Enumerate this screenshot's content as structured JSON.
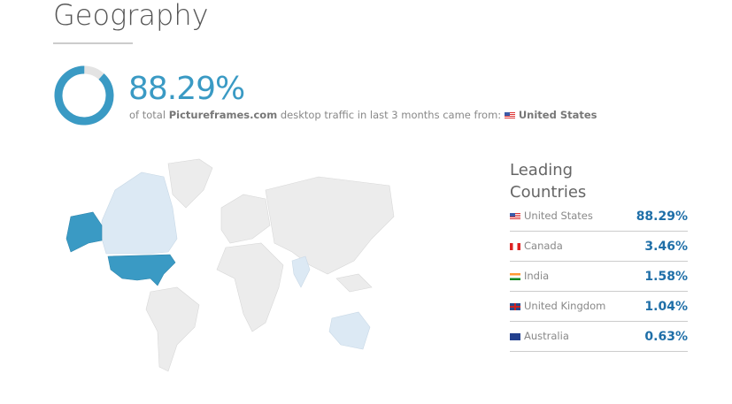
{
  "title": "Geography",
  "summary": {
    "percent": "88.29%",
    "share": 0.8829,
    "prefix": "of total",
    "site": "Pictureframes.com",
    "middle": "desktop traffic in last 3 months came from:",
    "country": "United States",
    "flag": "us-flag-icon"
  },
  "colors": {
    "accent": "#3a9ac4",
    "value": "#1f6fa8",
    "highlight_secondary": "#dce9f4",
    "land": "#ececec"
  },
  "leading": {
    "title_line1": "Leading",
    "title_line2": "Countries",
    "items": [
      {
        "name": "United States",
        "value": "88.29%",
        "flag": "us-flag-icon"
      },
      {
        "name": "Canada",
        "value": "3.46%",
        "flag": "canada-flag-icon"
      },
      {
        "name": "India",
        "value": "1.58%",
        "flag": "india-flag-icon"
      },
      {
        "name": "United Kingdom",
        "value": "1.04%",
        "flag": "uk-flag-icon"
      },
      {
        "name": "Australia",
        "value": "0.63%",
        "flag": "australia-flag-icon"
      }
    ]
  }
}
